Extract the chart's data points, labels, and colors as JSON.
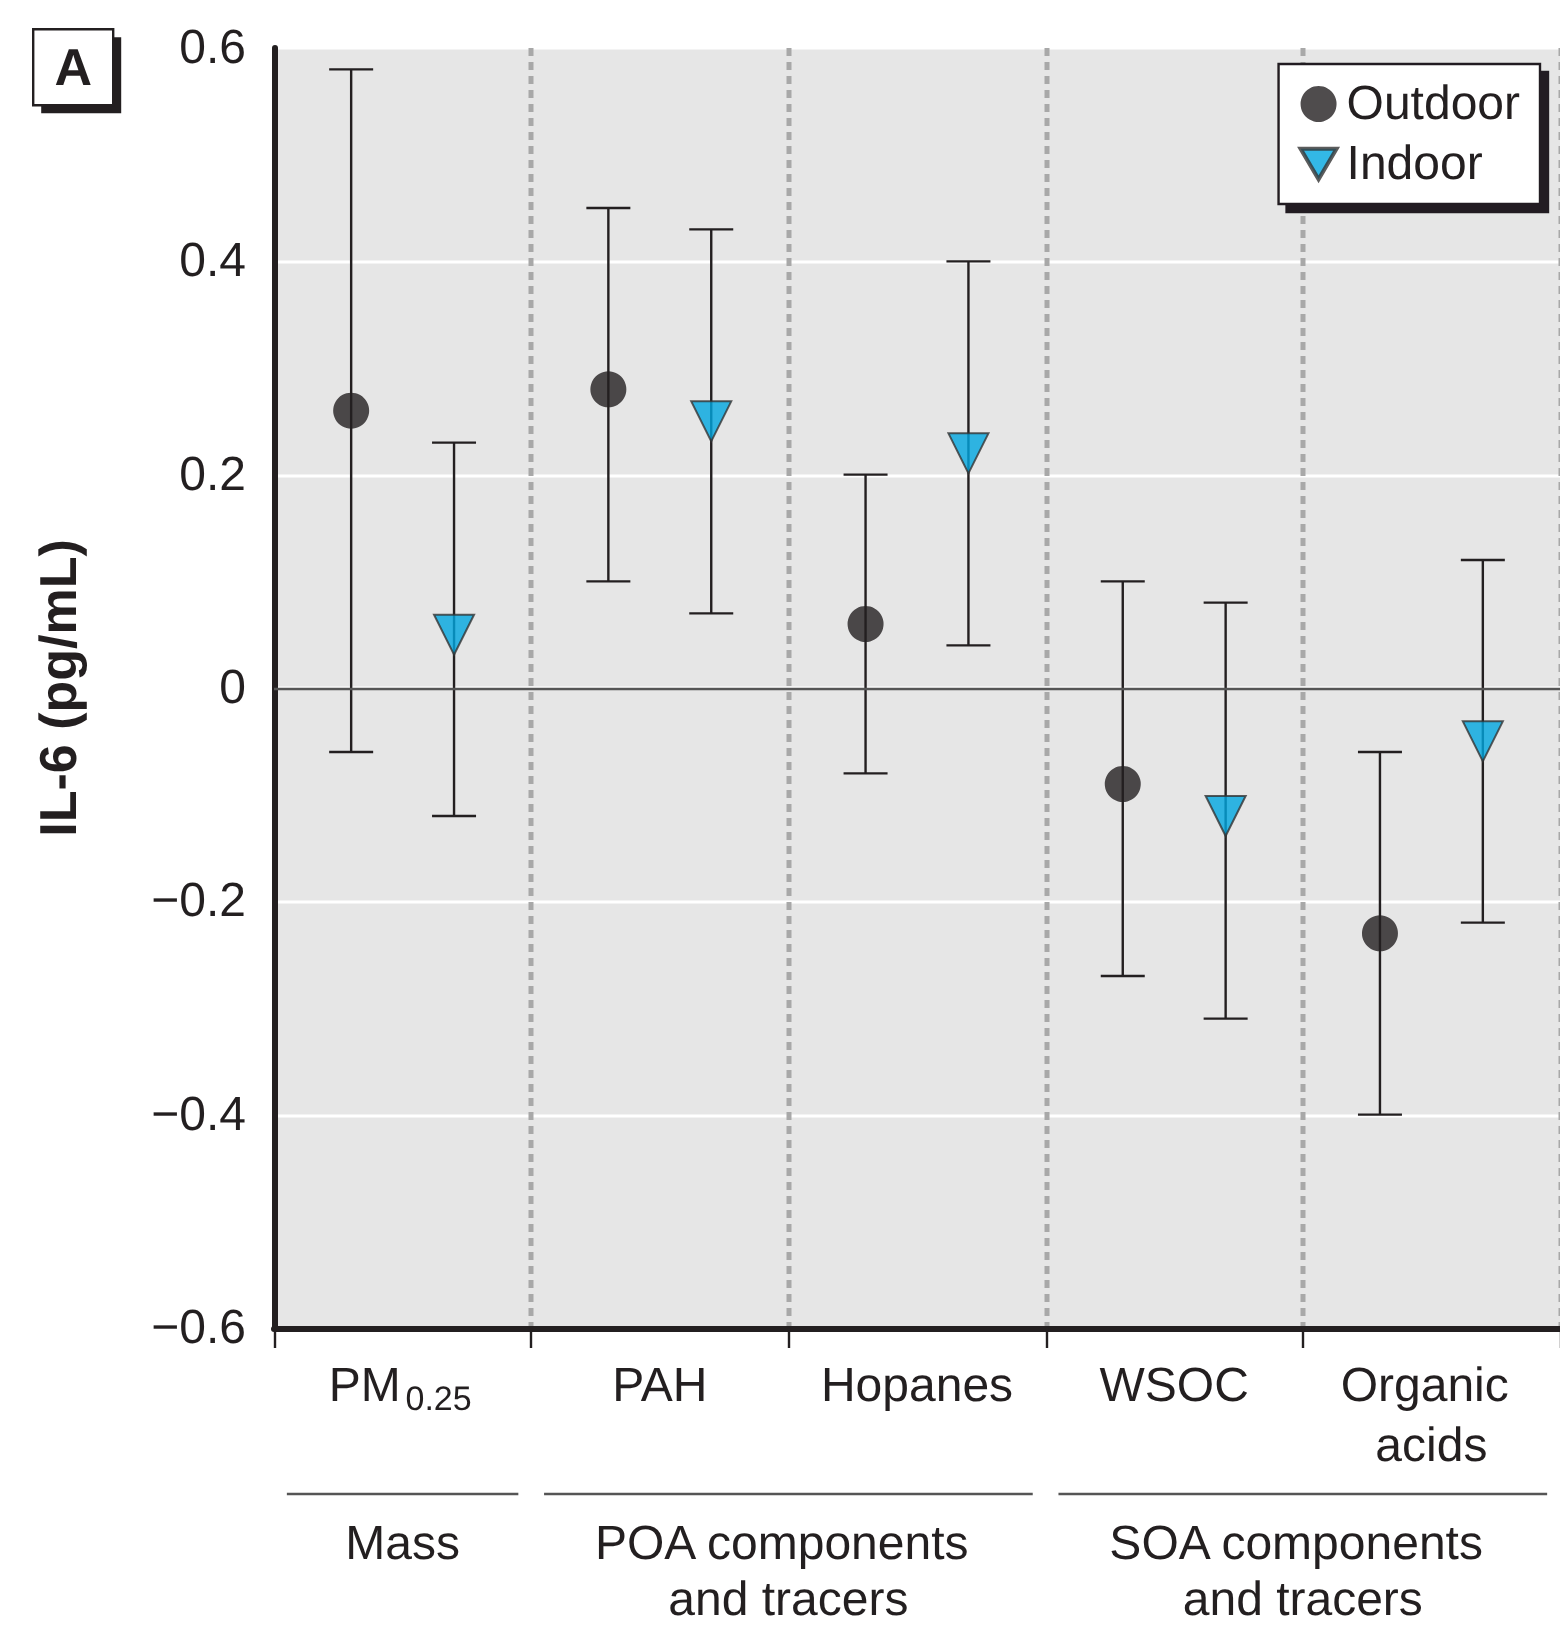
{
  "chart_data": {
    "type": "scatter",
    "ylabel": "IL-6 (pg/mL)",
    "categories": [
      "PM$_{0.25}$",
      "PAH",
      "Hopanes",
      "WSOC",
      "Organic acids"
    ],
    "series": [
      {
        "name": "Outdoor",
        "color": "#231f20",
        "marker": "circle",
        "values": [
          0.26,
          0.28,
          0.06,
          -0.09,
          -0.23
        ],
        "errors": [
          [
            -0.06,
            0.58
          ],
          [
            0.1,
            0.45
          ],
          [
            -0.08,
            0.2
          ],
          [
            -0.27,
            0.1
          ],
          [
            -0.4,
            -0.06
          ]
        ]
      },
      {
        "name": "Indoor",
        "color": "#00a6e0",
        "marker": "triangle",
        "values": [
          0.05,
          0.25,
          0.22,
          -0.12,
          -0.05
        ],
        "errors": [
          [
            -0.12,
            0.23
          ],
          [
            0.07,
            0.43
          ],
          [
            0.04,
            0.4
          ],
          [
            -0.31,
            0.08
          ],
          [
            -0.22,
            0.12
          ]
        ]
      }
    ],
    "ylim": [
      -0.6,
      0.6
    ],
    "yticks": [
      {
        "value": -0.6,
        "label": "−0.6"
      },
      {
        "value": -0.4,
        "label": "−0.4"
      },
      {
        "value": -0.2,
        "label": "−0.2"
      },
      0,
      0.2,
      0.4,
      0.6
    ],
    "ref_lines": [
      {
        "axis": "y",
        "value": 0,
        "color": "#555555"
      }
    ],
    "grid": true,
    "legend": "top right",
    "annotations": [
      "A",
      "Mass",
      "POA components and tracers",
      "SOA components and tracers"
    ]
  }
}
